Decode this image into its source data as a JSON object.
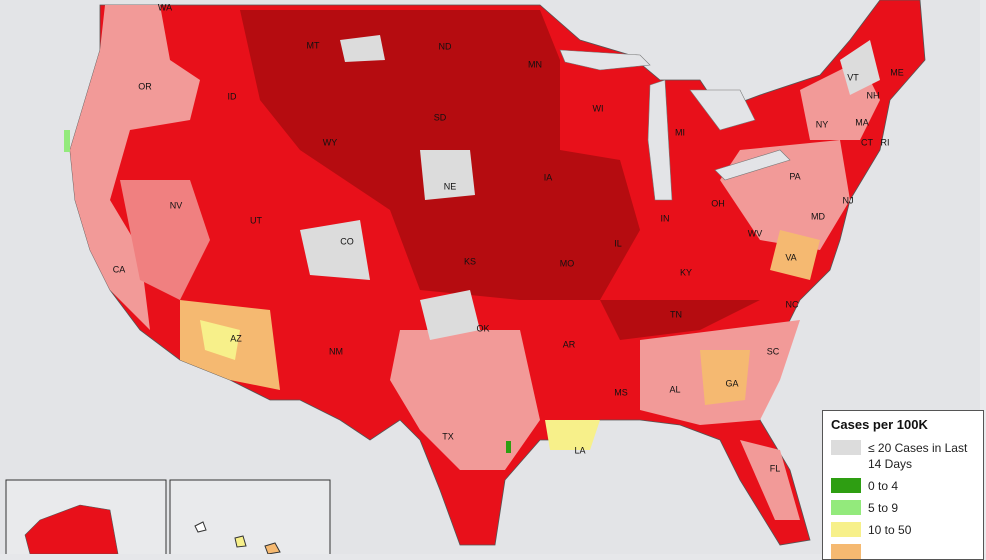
{
  "map": {
    "state_labels": [
      "WA",
      "OR",
      "ID",
      "MT",
      "ND",
      "MN",
      "WI",
      "MI",
      "SD",
      "WY",
      "NE",
      "IA",
      "IL",
      "IN",
      "OH",
      "PA",
      "NY",
      "VT",
      "NH",
      "ME",
      "MA",
      "CT",
      "RI",
      "NJ",
      "MD",
      "NV",
      "UT",
      "CO",
      "KS",
      "MO",
      "KY",
      "WV",
      "VA",
      "CA",
      "AZ",
      "NM",
      "OK",
      "AR",
      "TN",
      "NC",
      "SC",
      "GA",
      "AL",
      "MS",
      "LA",
      "TX",
      "FL"
    ]
  },
  "legend": {
    "title": "Cases per 100K",
    "items": [
      {
        "label": "≤ 20 Cases in Last 14 Days",
        "color": "#dcdcdc"
      },
      {
        "label": "0 to 4",
        "color": "#2e9e12"
      },
      {
        "label": "5 to 9",
        "color": "#93ea7c"
      },
      {
        "label": "10 to 50",
        "color": "#f7f08a"
      }
    ]
  }
}
